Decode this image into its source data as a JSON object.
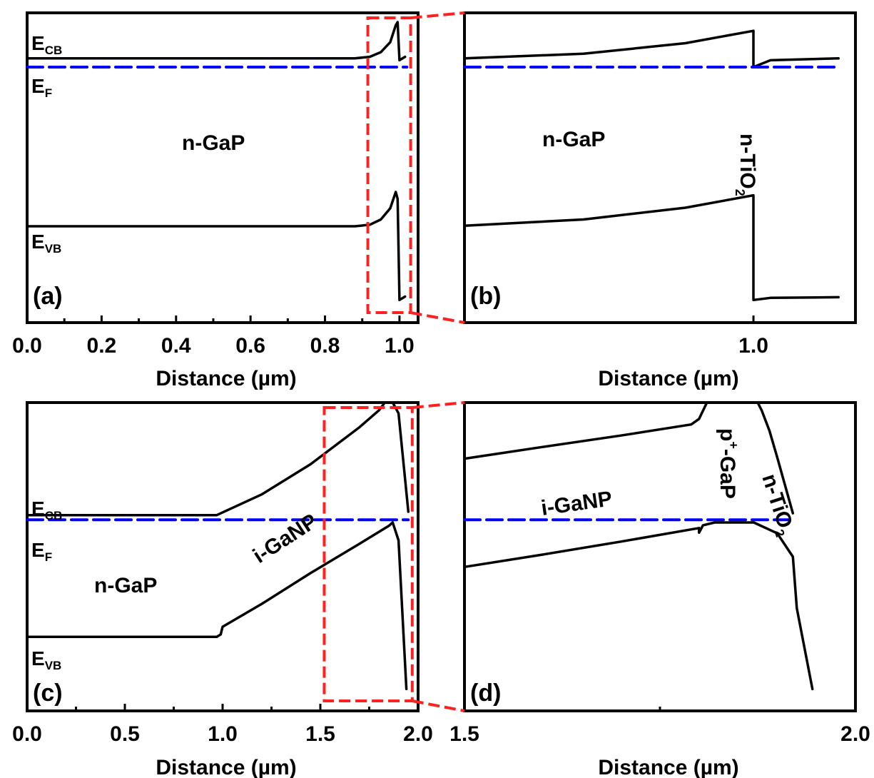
{
  "chart_data": [
    {
      "panel": "(a)",
      "type": "line",
      "title": "",
      "xlabel": "Distance (µm)",
      "ylabel": "",
      "xlim": [
        0,
        1.05
      ],
      "ylim": [
        0,
        100
      ],
      "x_ticks": [
        "0.0",
        "0.2",
        "0.4",
        "0.6",
        "0.8",
        "1.0"
      ],
      "labels": {
        "ecb": {
          "main": "E",
          "sub": "CB"
        },
        "ef": {
          "main": "E",
          "sub": "F"
        },
        "evb": {
          "main": "E",
          "sub": "VB"
        },
        "region": "n-GaP",
        "panel": "(a)"
      },
      "zoom_box": {
        "x": [
          0.915,
          1.03
        ]
      },
      "series": [
        {
          "role": "conduction band",
          "style": "solid",
          "color": "#000000",
          "x": [
            0,
            0.88,
            0.92,
            0.95,
            0.975,
            0.99,
            0.995,
            1.0,
            1.015
          ],
          "y": [
            85.3,
            85.3,
            85.8,
            87.3,
            90.5,
            96.0,
            97.0,
            84.7,
            85.8
          ]
        },
        {
          "role": "Fermi level",
          "style": "dashed",
          "color": "#0000FF",
          "x": [
            0,
            1.02
          ],
          "y": [
            82.5,
            82.5
          ]
        },
        {
          "role": "valence band",
          "style": "solid",
          "color": "#000000",
          "x": [
            0,
            0.88,
            0.92,
            0.95,
            0.975,
            0.99,
            0.995,
            1.0,
            1.015
          ],
          "y": [
            31.1,
            31.1,
            31.6,
            33.3,
            36.9,
            42.2,
            40.0,
            7.3,
            8.4
          ]
        }
      ]
    },
    {
      "panel": "(b)",
      "type": "line",
      "title": "",
      "xlabel": "Distance (µm)",
      "ylabel": "",
      "xlim": [
        0.915,
        1.03
      ],
      "ylim": [
        0,
        100
      ],
      "x_ticks": [
        "1.0"
      ],
      "labels": {
        "region1": "n-GaP",
        "region2": "n-TiO",
        "region2_sub": "2",
        "panel": "(b)"
      },
      "series": [
        {
          "role": "conduction band",
          "style": "solid",
          "color": "#000000",
          "x": [
            0.915,
            0.95,
            0.98,
            1.0,
            1.0,
            1.005,
            1.025
          ],
          "y": [
            85.3,
            86.8,
            90.2,
            94.2,
            82.5,
            84.7,
            85.3
          ]
        },
        {
          "role": "Fermi level",
          "style": "dashed",
          "color": "#0000FF",
          "x": [
            0.915,
            1.025
          ],
          "y": [
            82.5,
            82.5
          ]
        },
        {
          "role": "valence band",
          "style": "solid",
          "color": "#000000",
          "x": [
            0.915,
            0.95,
            0.98,
            1.0,
            1.0,
            1.005,
            1.025
          ],
          "y": [
            31.3,
            33.3,
            37.1,
            41.1,
            7.3,
            8.0,
            8.2
          ]
        }
      ]
    },
    {
      "panel": "(c)",
      "type": "line",
      "title": "",
      "xlabel": "Distance (µm)",
      "ylabel": "",
      "xlim": [
        0,
        2.0
      ],
      "ylim": [
        0,
        100
      ],
      "x_ticks": [
        "0.0",
        "0.5",
        "1.0",
        "1.5",
        "2.0"
      ],
      "labels": {
        "ecb": {
          "main": "E",
          "sub": "CB"
        },
        "ef": {
          "main": "E",
          "sub": "F"
        },
        "evb": {
          "main": "E",
          "sub": "VB"
        },
        "region1": "n-GaP",
        "region2": "i-GaNP",
        "panel": "(c)"
      },
      "zoom_box": {
        "x": [
          1.52,
          1.97
        ]
      },
      "series": [
        {
          "role": "conduction band",
          "style": "solid",
          "color": "#000000",
          "x": [
            0,
            0.97,
            1.2,
            1.45,
            1.7,
            1.8,
            1.83,
            1.87,
            1.9,
            1.95
          ],
          "y": [
            63.5,
            63.5,
            70.2,
            80.0,
            92.0,
            97.5,
            100,
            100,
            96.5,
            64.6
          ]
        },
        {
          "role": "Fermi level",
          "style": "dashed",
          "color": "#0000FF",
          "x": [
            0,
            1.95
          ],
          "y": [
            62.0,
            62.0
          ]
        },
        {
          "role": "valence band",
          "style": "solid",
          "color": "#000000",
          "x": [
            0,
            0.97,
            0.99,
            1.0,
            1.2,
            1.45,
            1.7,
            1.85,
            1.87,
            1.9,
            1.94
          ],
          "y": [
            24.0,
            24.0,
            24.8,
            27.3,
            34.7,
            44.7,
            54.2,
            60.0,
            61.1,
            55.3,
            7.1
          ]
        }
      ]
    },
    {
      "panel": "(d)",
      "type": "line",
      "title": "",
      "xlabel": "Distance (µm)",
      "ylabel": "",
      "xlim": [
        1.5,
        2.0
      ],
      "ylim": [
        0,
        100
      ],
      "x_ticks": [
        "1.5",
        "2.0"
      ],
      "labels": {
        "region1": "i-GaNP",
        "region2_sup": "+",
        "region2_main": "p",
        "region2_rest": "-GaP",
        "region3": "n-TiO",
        "region3_sub": "2",
        "panel": "(d)"
      },
      "series": [
        {
          "role": "conduction band",
          "style": "solid",
          "color": "#000000",
          "x": [
            1.5,
            1.6,
            1.7,
            1.79,
            1.8,
            1.81,
            1.85,
            1.875,
            1.88,
            1.89,
            1.9,
            1.92
          ],
          "y": [
            81.8,
            85.6,
            89.3,
            92.9,
            94.7,
            100,
            100,
            100,
            97.5,
            90.9,
            82.2,
            64.1
          ]
        },
        {
          "role": "Fermi level",
          "style": "dashed",
          "color": "#0000FF",
          "x": [
            1.5,
            1.92
          ],
          "y": [
            62.0,
            62.0
          ]
        },
        {
          "role": "valence band",
          "style": "solid",
          "color": "#000000",
          "x": [
            1.5,
            1.6,
            1.7,
            1.8,
            1.8,
            1.805,
            1.82,
            1.87,
            1.9,
            1.92,
            1.925,
            1.945
          ],
          "y": [
            46.7,
            50.7,
            54.9,
            59.3,
            57.8,
            60.2,
            61.1,
            61.1,
            57.6,
            50.0,
            33.3,
            7.1
          ]
        }
      ]
    }
  ]
}
